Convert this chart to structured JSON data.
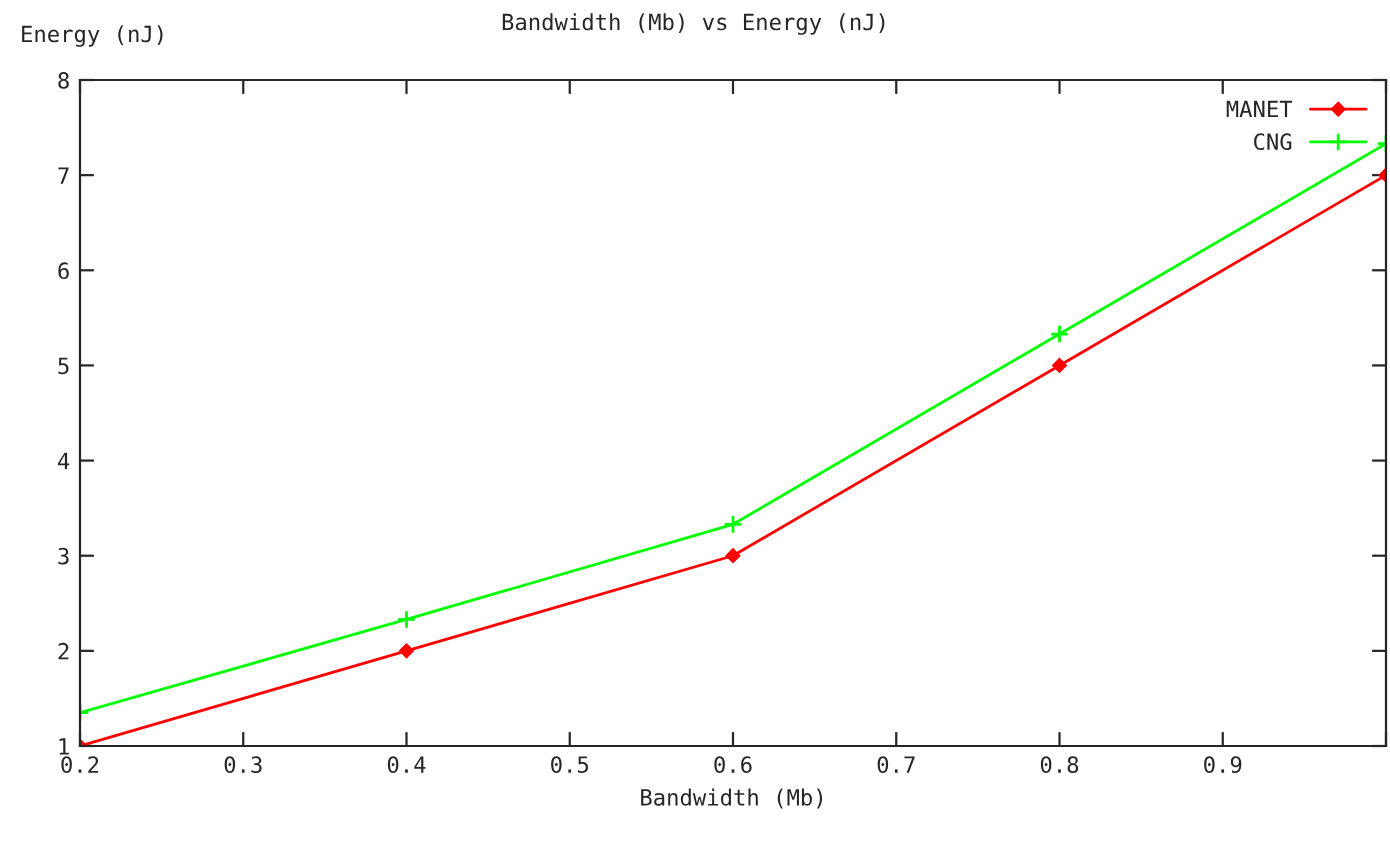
{
  "chart_data": {
    "type": "line",
    "title": "Bandwidth (Mb) vs Energy (nJ)",
    "xlabel": "Bandwidth (Mb)",
    "ylabel": "Energy (nJ)",
    "x": [
      0.2,
      0.4,
      0.6,
      0.8,
      1.0
    ],
    "series": [
      {
        "name": "MANET",
        "color": "#ff0000",
        "marker": "diamond",
        "values": [
          1,
          2,
          3,
          5,
          7
        ]
      },
      {
        "name": "CNG",
        "color": "#00ff00",
        "marker": "cross",
        "values": [
          1.35,
          2.33,
          3.33,
          5.33,
          7.33
        ]
      }
    ],
    "xlim": [
      0.2,
      1.0
    ],
    "xticks": [
      0.2,
      0.3,
      0.4,
      0.5,
      0.6,
      0.7,
      0.8,
      0.9,
      {
        "value": 1.0,
        "label": null
      }
    ],
    "ylim": [
      1,
      8
    ],
    "yticks": [
      1,
      2,
      3,
      4,
      5,
      6,
      7,
      8
    ],
    "grid": false,
    "legend": "top right",
    "line_style": "solid"
  }
}
